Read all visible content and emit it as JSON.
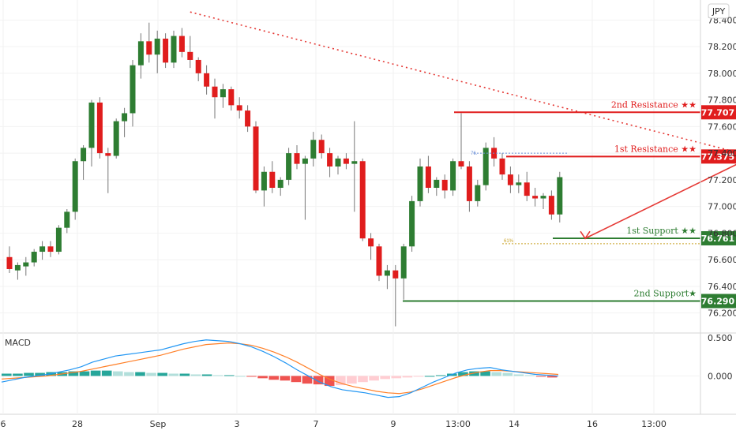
{
  "symbol": "JPY",
  "colors": {
    "up": "#2e7d32",
    "down": "#e01d1d",
    "resistance": "#e01d1d",
    "support": "#2e7d32",
    "trendline": "#e53935",
    "arrow": "#e53935",
    "macd_line": "#2196f3",
    "signal_line": "#ff7f27",
    "hist_pos_strong": "#26a69a",
    "hist_pos_weak": "#b2dfdb",
    "hist_neg_strong": "#ef5350",
    "hist_neg_weak": "#ffcdd2",
    "fib": "#c9a227",
    "grid": "#f2f2f2"
  },
  "y_axis": {
    "ticks": [
      "78.400",
      "78.200",
      "78.000",
      "77.800",
      "77.600",
      "77.400",
      "77.200",
      "77.000",
      "76.800",
      "76.600",
      "76.400",
      "76.200"
    ]
  },
  "x_axis": {
    "ticks": [
      "6",
      "28",
      "Sep",
      "3",
      "7",
      "9",
      "13:00",
      "14",
      "16",
      "13:00"
    ]
  },
  "levels": [
    {
      "name": "2nd Resistance",
      "label": "2nd Resistance ★★",
      "price": 77.707,
      "price_text": "77.707",
      "type": "resistance"
    },
    {
      "name": "1st Resistance",
      "label": "1st Resistance ★★",
      "price": 77.375,
      "price_text": "77.375",
      "type": "resistance"
    },
    {
      "name": "1st Support",
      "label": "1st Support ★★",
      "price": 76.761,
      "price_text": "76.761",
      "type": "support"
    },
    {
      "name": "2nd Support",
      "label": "2nd Support★",
      "price": 76.29,
      "price_text": "76.290",
      "type": "support"
    }
  ],
  "annotations": {
    "fib_small_label": "76.",
    "fib_small_label2": "61%"
  },
  "macd": {
    "title": "MACD",
    "ticks": [
      "0.500",
      "0.000"
    ]
  },
  "chart_data": {
    "type": "candlestick",
    "ylim": [
      76.05,
      78.55
    ],
    "candles": [
      [
        76.62,
        76.7,
        76.5,
        76.53
      ],
      [
        76.52,
        76.58,
        76.45,
        76.56
      ],
      [
        76.55,
        76.62,
        76.48,
        76.58
      ],
      [
        76.58,
        76.68,
        76.55,
        76.66
      ],
      [
        76.66,
        76.74,
        76.6,
        76.7
      ],
      [
        76.7,
        76.74,
        76.62,
        76.66
      ],
      [
        76.66,
        76.86,
        76.64,
        76.84
      ],
      [
        76.84,
        76.98,
        76.8,
        76.96
      ],
      [
        76.96,
        77.36,
        76.9,
        77.34
      ],
      [
        77.34,
        77.46,
        77.2,
        77.44
      ],
      [
        77.44,
        77.8,
        77.3,
        77.78
      ],
      [
        77.78,
        77.82,
        77.36,
        77.4
      ],
      [
        77.4,
        77.44,
        77.1,
        77.38
      ],
      [
        77.38,
        77.66,
        77.36,
        77.64
      ],
      [
        77.64,
        77.74,
        77.52,
        77.7
      ],
      [
        77.7,
        78.1,
        77.6,
        78.06
      ],
      [
        78.06,
        78.3,
        77.96,
        78.24
      ],
      [
        78.24,
        78.38,
        78.08,
        78.14
      ],
      [
        78.14,
        78.32,
        78.0,
        78.26
      ],
      [
        78.26,
        78.3,
        78.04,
        78.08
      ],
      [
        78.08,
        78.32,
        78.04,
        78.28
      ],
      [
        78.28,
        78.34,
        78.12,
        78.16
      ],
      [
        78.16,
        78.28,
        78.04,
        78.1
      ],
      [
        78.1,
        78.12,
        77.94,
        78.0
      ],
      [
        78.0,
        78.06,
        77.84,
        77.9
      ],
      [
        77.9,
        77.96,
        77.66,
        77.82
      ],
      [
        77.82,
        77.92,
        77.74,
        77.88
      ],
      [
        77.88,
        77.9,
        77.72,
        77.76
      ],
      [
        77.76,
        77.82,
        77.66,
        77.72
      ],
      [
        77.72,
        77.76,
        77.56,
        77.6
      ],
      [
        77.6,
        77.64,
        77.1,
        77.12
      ],
      [
        77.12,
        77.3,
        77.0,
        77.26
      ],
      [
        77.26,
        77.34,
        77.1,
        77.14
      ],
      [
        77.14,
        77.22,
        77.08,
        77.2
      ],
      [
        77.2,
        77.44,
        77.16,
        77.4
      ],
      [
        77.4,
        77.46,
        77.28,
        77.32
      ],
      [
        77.32,
        77.38,
        76.9,
        77.36
      ],
      [
        77.36,
        77.56,
        77.3,
        77.5
      ],
      [
        77.5,
        77.54,
        77.36,
        77.4
      ],
      [
        77.4,
        77.44,
        77.22,
        77.3
      ],
      [
        77.3,
        77.38,
        77.24,
        77.36
      ],
      [
        77.36,
        77.4,
        77.28,
        77.32
      ],
      [
        77.32,
        77.64,
        76.96,
        77.34
      ],
      [
        77.34,
        77.36,
        76.74,
        76.76
      ],
      [
        76.76,
        76.8,
        76.6,
        76.7
      ],
      [
        76.7,
        76.72,
        76.44,
        76.48
      ],
      [
        76.48,
        76.56,
        76.38,
        76.52
      ],
      [
        76.52,
        76.56,
        76.1,
        76.46
      ],
      [
        76.46,
        76.72,
        76.3,
        76.7
      ],
      [
        76.7,
        77.08,
        76.66,
        77.04
      ],
      [
        77.04,
        77.36,
        77.0,
        77.3
      ],
      [
        77.3,
        77.38,
        77.1,
        77.14
      ],
      [
        77.14,
        77.22,
        77.08,
        77.2
      ],
      [
        77.2,
        77.24,
        77.06,
        77.12
      ],
      [
        77.12,
        77.36,
        77.08,
        77.34
      ],
      [
        77.34,
        77.7,
        77.28,
        77.3
      ],
      [
        77.3,
        77.34,
        76.96,
        77.04
      ],
      [
        77.04,
        77.2,
        77.0,
        77.16
      ],
      [
        77.16,
        77.48,
        77.12,
        77.44
      ],
      [
        77.44,
        77.52,
        77.3,
        77.36
      ],
      [
        77.36,
        77.4,
        77.2,
        77.24
      ],
      [
        77.24,
        77.3,
        77.1,
        77.16
      ],
      [
        77.16,
        77.24,
        77.1,
        77.18
      ],
      [
        77.18,
        77.26,
        77.04,
        77.08
      ],
      [
        77.08,
        77.14,
        77.0,
        77.06
      ],
      [
        77.06,
        77.1,
        76.98,
        77.08
      ],
      [
        77.08,
        77.12,
        76.9,
        76.94
      ],
      [
        76.94,
        77.26,
        76.88,
        77.22
      ]
    ],
    "trendline": [
      [
        22,
        78.46
      ],
      [
        89,
        77.4
      ]
    ],
    "arrow": {
      "from": [
        90,
        77.36
      ],
      "to": [
        92.5,
        76.76
      ]
    },
    "fib_line": {
      "price": 76.72,
      "from": 60
    },
    "macd_line": [
      -0.08,
      -0.05,
      -0.02,
      0.0,
      0.02,
      0.05,
      0.08,
      0.12,
      0.18,
      0.22,
      0.26,
      0.28,
      0.3,
      0.32,
      0.34,
      0.38,
      0.42,
      0.45,
      0.47,
      0.46,
      0.45,
      0.42,
      0.38,
      0.32,
      0.25,
      0.17,
      0.08,
      0.0,
      -0.08,
      -0.14,
      -0.18,
      -0.2,
      -0.22,
      -0.25,
      -0.28,
      -0.27,
      -0.22,
      -0.15,
      -0.08,
      -0.02,
      0.04,
      0.08,
      0.1,
      0.11,
      0.08,
      0.06,
      0.04,
      0.02,
      0.01,
      0.0
    ],
    "signal_line": [
      -0.04,
      -0.03,
      -0.02,
      -0.01,
      0.0,
      0.02,
      0.04,
      0.06,
      0.09,
      0.12,
      0.15,
      0.18,
      0.21,
      0.24,
      0.27,
      0.31,
      0.35,
      0.38,
      0.41,
      0.42,
      0.43,
      0.42,
      0.4,
      0.36,
      0.31,
      0.25,
      0.18,
      0.1,
      0.02,
      -0.05,
      -0.1,
      -0.14,
      -0.17,
      -0.2,
      -0.22,
      -0.23,
      -0.21,
      -0.17,
      -0.12,
      -0.07,
      -0.02,
      0.02,
      0.05,
      0.07,
      0.07,
      0.06,
      0.05,
      0.04,
      0.03,
      0.02
    ],
    "histogram": [
      0.03,
      0.03,
      0.04,
      0.04,
      0.05,
      0.05,
      0.06,
      0.06,
      0.07,
      0.07,
      0.06,
      0.05,
      0.05,
      0.04,
      0.04,
      0.03,
      0.03,
      0.02,
      0.02,
      0.01,
      0.01,
      0.0,
      -0.01,
      -0.03,
      -0.05,
      -0.06,
      -0.08,
      -0.1,
      -0.11,
      -0.13,
      -0.12,
      -0.1,
      -0.08,
      -0.06,
      -0.04,
      -0.03,
      -0.02,
      -0.01,
      0.0,
      0.01,
      0.03,
      0.05,
      0.06,
      0.06,
      0.05,
      0.04,
      0.02,
      0.01,
      -0.01,
      -0.02
    ],
    "macd_ylim": [
      -0.5,
      0.55
    ]
  }
}
